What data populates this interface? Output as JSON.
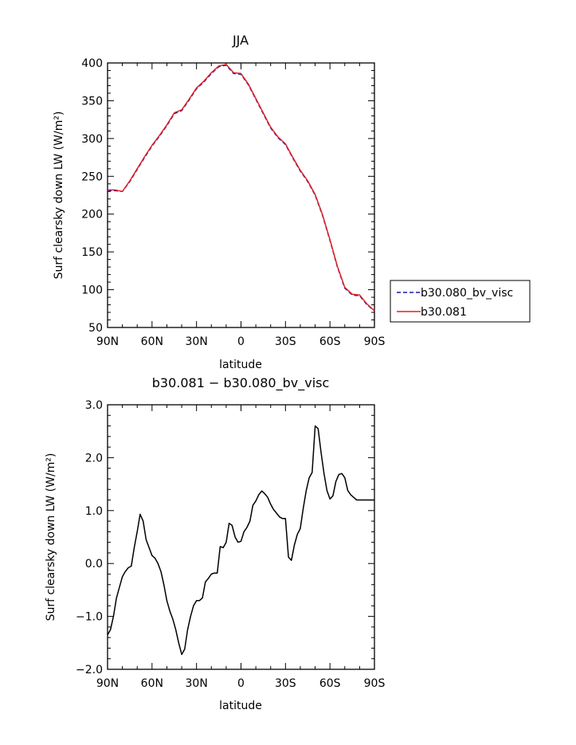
{
  "chart_data": [
    {
      "type": "line",
      "title": "JJA",
      "xlabel": "latitude",
      "ylabel": "Surf clearsky down LW (W/m²)",
      "xlim": [
        90,
        -90
      ],
      "ylim": [
        50,
        400
      ],
      "x_ticks": [
        90,
        60,
        30,
        0,
        -30,
        -60,
        -90
      ],
      "x_tick_labels": [
        "90N",
        "60N",
        "30N",
        "0",
        "30S",
        "60S",
        "90S"
      ],
      "y_ticks": [
        50,
        100,
        150,
        200,
        250,
        300,
        350,
        400
      ],
      "y_tick_labels": [
        "50",
        "100",
        "150",
        "200",
        "250",
        "300",
        "350",
        "400"
      ],
      "legend_position": "right",
      "legend": [
        "b30.080_bv_visc",
        "b30.081"
      ],
      "x": [
        90,
        85,
        80,
        75,
        70,
        65,
        60,
        55,
        50,
        45,
        40,
        35,
        30,
        25,
        20,
        15,
        10,
        5,
        0,
        -5,
        -10,
        -15,
        -20,
        -25,
        -30,
        -35,
        -40,
        -45,
        -50,
        -55,
        -60,
        -65,
        -70,
        -75,
        -80,
        -85,
        -90
      ],
      "series": [
        {
          "name": "b30.080_bv_visc",
          "color": "#1a1aa6",
          "dash": "dashed",
          "values": [
            231,
            231,
            230,
            243,
            259,
            275,
            290,
            303,
            317,
            333,
            337,
            351,
            366,
            375,
            386,
            395,
            397,
            386,
            385,
            371,
            352,
            333,
            314,
            301,
            292,
            274,
            257,
            243,
            225,
            198,
            165,
            130,
            102,
            93,
            92,
            80,
            72
          ]
        },
        {
          "name": "b30.081",
          "color": "#e02020",
          "dash": "solid",
          "values": [
            232,
            232,
            230,
            244,
            260,
            276,
            291,
            304,
            318,
            334,
            338,
            352,
            367,
            376,
            387,
            396,
            398,
            387,
            386,
            372,
            353,
            334,
            315,
            302,
            293,
            275,
            258,
            244,
            226,
            199,
            166,
            131,
            103,
            94,
            93,
            81,
            72
          ]
        }
      ]
    },
    {
      "type": "line",
      "title": "b30.081 − b30.080_bv_visc",
      "xlabel": "latitude",
      "ylabel": "Surf clearsky down LW (W/m²)",
      "xlim": [
        90,
        -90
      ],
      "ylim": [
        -2.0,
        3.0
      ],
      "x_ticks": [
        90,
        60,
        30,
        0,
        -30,
        -60,
        -90
      ],
      "x_tick_labels": [
        "90N",
        "60N",
        "30N",
        "0",
        "30S",
        "60S",
        "90S"
      ],
      "y_ticks": [
        -2.0,
        -1.0,
        0.0,
        1.0,
        2.0,
        3.0
      ],
      "y_tick_labels": [
        "−2.0",
        "−1.0",
        "0.0",
        "1.0",
        "2.0",
        "3.0"
      ],
      "x": [
        90,
        88,
        86,
        84,
        82,
        80,
        78,
        76,
        74,
        72,
        70,
        68,
        66,
        64,
        62,
        60,
        58,
        56,
        54,
        52,
        50,
        48,
        46,
        44,
        42,
        40,
        38,
        36,
        34,
        32,
        30,
        28,
        26,
        24,
        22,
        20,
        18,
        16,
        14,
        12,
        10,
        8,
        6,
        4,
        2,
        0,
        -2,
        -4,
        -6,
        -8,
        -10,
        -12,
        -14,
        -16,
        -18,
        -20,
        -22,
        -24,
        -26,
        -28,
        -30,
        -32,
        -34,
        -36,
        -38,
        -40,
        -42,
        -44,
        -46,
        -48,
        -50,
        -52,
        -54,
        -56,
        -58,
        -60,
        -62,
        -64,
        -66,
        -68,
        -70,
        -72,
        -74,
        -76,
        -78,
        -80,
        -82,
        -84,
        -86,
        -88,
        -90
      ],
      "series": [
        {
          "name": "",
          "color": "#000000",
          "dash": "solid",
          "values": [
            -1.35,
            -1.25,
            -1.0,
            -0.65,
            -0.45,
            -0.25,
            -0.15,
            -0.08,
            -0.05,
            0.3,
            0.6,
            0.93,
            0.8,
            0.45,
            0.3,
            0.15,
            0.1,
            0.0,
            -0.15,
            -0.4,
            -0.7,
            -0.9,
            -1.05,
            -1.25,
            -1.5,
            -1.72,
            -1.62,
            -1.25,
            -1.0,
            -0.8,
            -0.7,
            -0.7,
            -0.65,
            -0.35,
            -0.28,
            -0.2,
            -0.18,
            -0.18,
            0.32,
            0.3,
            0.4,
            0.76,
            0.72,
            0.5,
            0.4,
            0.42,
            0.6,
            0.68,
            0.8,
            1.1,
            1.18,
            1.3,
            1.37,
            1.32,
            1.25,
            1.12,
            1.02,
            0.95,
            0.88,
            0.85,
            0.85,
            0.12,
            0.06,
            0.35,
            0.55,
            0.66,
            1.05,
            1.38,
            1.62,
            1.72,
            2.6,
            2.55,
            2.1,
            1.7,
            1.38,
            1.22,
            1.28,
            1.55,
            1.68,
            1.7,
            1.62,
            1.38,
            1.3,
            1.25,
            1.2,
            1.2,
            1.2,
            1.2,
            1.2,
            1.2,
            1.2
          ]
        }
      ]
    }
  ]
}
